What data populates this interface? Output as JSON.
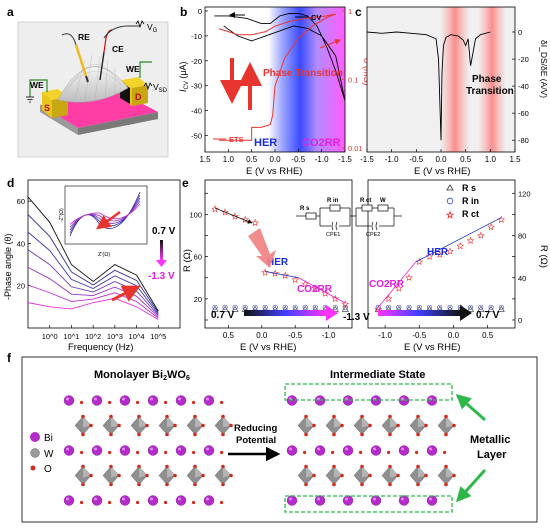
{
  "panels": {
    "a": {
      "letter": "a",
      "labels": {
        "re": "RE",
        "ce": "CE",
        "vg": "V",
        "vg_sub": "G",
        "we_left": "WE",
        "we_right": "WE",
        "vsd": "V",
        "vsd_sub": "SD",
        "s": "S",
        "d": "D"
      },
      "colors": {
        "substrate": "#ff3ea5",
        "electrode": "#e8c51a",
        "flake": "#d9d9d9"
      }
    },
    "b": {
      "letter": "b",
      "xlabel": "E (V vs RHE)",
      "ylabel_left": "I",
      "ylabel_left_sub": "CV",
      "ylabel_left_unit": " (μA)",
      "ylabel_right": "σ (mS)",
      "legend_cv": "CV",
      "legend_ets": "ETS",
      "annotation": "Phase Transition",
      "region_her": "HER",
      "region_co2rr": "CO2RR",
      "colors": {
        "her": "#3a4cff",
        "co2rr": "#ff33ff",
        "ets": "#e8342f"
      }
    },
    "c": {
      "letter": "c",
      "xlabel": "E (V vs RHE)",
      "ylabel_right": "δI_DS/δE (A/V)",
      "annotation_line1": "Phase",
      "annotation_line2": "Transition"
    },
    "d": {
      "letter": "d",
      "xlabel": "Frequency (Hz)",
      "ylabel": "-Phase angle (θ)",
      "label_top": "0.7 V",
      "label_bottom": "-1.3 V",
      "inset_xlabel": "Z'(Ω)",
      "inset_ylabel": "-Z''(Ω)"
    },
    "e": {
      "letter": "e",
      "ylabel": "R (Ω)",
      "xlabel_left": "E (V vs RHE)",
      "xlabel_right": "E (V vs RHE)",
      "legend": [
        {
          "name": "R s"
        },
        {
          "name": "R in"
        },
        {
          "name": "R ct"
        }
      ],
      "circuit": {
        "rs": "R s",
        "rin": "R in",
        "rct": "R ct",
        "w": "W",
        "cpe1": "CPE1",
        "cpe2": "CPE2"
      },
      "region_her_left": "HER",
      "region_co2rr_left": "CO2RR",
      "region_her_right": "HER",
      "region_co2rr_right": "CO2RR",
      "arrow_left_start": "0.7 V",
      "arrow_left_end": "-1.3 V",
      "arrow_right_end": "0.7 V"
    },
    "f": {
      "letter": "f",
      "title_left": "Monolayer Bi2WO6",
      "title_right": "Intermediate State",
      "arrow_label_line1": "Reducing",
      "arrow_label_line2": "Potential",
      "legend": [
        {
          "name": "Bi"
        },
        {
          "name": "W"
        },
        {
          "name": "O"
        }
      ],
      "metallic_line1": "Metallic",
      "metallic_line2": "Layer",
      "colors": {
        "bi": "#b32cc9",
        "w": "#9a9a9a",
        "o": "#d12a1e",
        "arrow": "#2eb84a"
      }
    }
  },
  "chart_data": [
    {
      "panel": "b",
      "type": "line",
      "x_range": [
        1.5,
        -1.5
      ],
      "ylim_right": [
        0.01,
        1
      ],
      "yscale_right": "log",
      "xticks": [
        1.5,
        1.0,
        0.5,
        0.0,
        -0.5,
        -1.0,
        -1.5
      ],
      "xtick_labels": [
        "1.5",
        "1.0",
        "0.5",
        "0.0",
        "-0.5",
        "-1.0",
        "-1.5"
      ],
      "yticks_left": [
        0,
        -10,
        -20,
        -30,
        -40,
        -50
      ],
      "ytick_labels_left": [
        "0",
        "-10",
        "-20",
        "-30",
        "-40",
        "-50"
      ],
      "ytick_labels_right": [
        "0.01",
        "0.1",
        "1"
      ],
      "series": [
        {
          "name": "CV",
          "x": [
            1.3,
            1.0,
            0.6,
            0.3,
            0.1,
            -0.1,
            -0.3,
            -0.5,
            -0.7,
            -0.9,
            -1.1,
            -1.3,
            -1.5,
            -1.3,
            -1.0,
            -0.7,
            -0.4,
            -0.1,
            0.2,
            0.5,
            0.8,
            1.1
          ],
          "y": [
            -2,
            -2,
            -3,
            -5,
            -5,
            -2,
            -1,
            -1,
            -2,
            -6,
            -14,
            -24,
            -36,
            -18,
            -10,
            -7,
            -6,
            -8,
            -10,
            -12,
            -10,
            -6
          ]
        },
        {
          "name": "ETS",
          "x": [
            1.2,
            1.0,
            0.7,
            0.5,
            0.5,
            0.3,
            0.1,
            0.05,
            0.0,
            -0.2,
            -0.5,
            -0.8,
            -1.1,
            -1.3,
            -1.1,
            -0.8,
            -0.5,
            -0.3,
            0.0,
            0.2,
            0.5,
            0.8,
            1.0,
            1.2
          ],
          "y": [
            0.013,
            0.013,
            0.013,
            0.013,
            0.02,
            0.02,
            0.022,
            0.03,
            0.08,
            0.2,
            0.4,
            0.6,
            0.8,
            0.9,
            0.85,
            0.8,
            0.75,
            0.7,
            0.6,
            0.5,
            0.45,
            0.45,
            0.5,
            0.55
          ]
        }
      ]
    },
    {
      "panel": "c",
      "type": "line",
      "x_range": [
        -1.5,
        1.5
      ],
      "xticks": [
        -1.5,
        -1.0,
        -0.5,
        0.0,
        0.5,
        1.0,
        1.5
      ],
      "xtick_labels": [
        "-1.5",
        "-1.0",
        "-0.5",
        "0.0",
        "0.5",
        "1.0",
        "1.5"
      ],
      "yticks": [
        0,
        -20,
        -40,
        -60,
        -80
      ],
      "ytick_labels": [
        "0",
        "-20",
        "-40",
        "-60",
        "-80"
      ],
      "series": [
        {
          "name": "dIds/dE",
          "x": [
            -1.5,
            -1.2,
            -0.9,
            -0.6,
            -0.3,
            -0.1,
            -0.05,
            0.0,
            0.02,
            0.05,
            0.1,
            0.2,
            0.35,
            0.45,
            0.5,
            0.55,
            0.6,
            0.65,
            0.7,
            0.8,
            1.0
          ],
          "y": [
            0,
            -1,
            0,
            -1,
            -2,
            -5,
            -20,
            -80,
            -30,
            -10,
            -4,
            -2,
            -3,
            -6,
            -10,
            -5,
            -25,
            -15,
            -5,
            -2,
            0
          ]
        }
      ]
    },
    {
      "panel": "d",
      "type": "line",
      "xscale": "log",
      "x_range": [
        0.1,
        1000000
      ],
      "xtick_labels": [
        "10^0",
        "10^1",
        "10^2",
        "10^3",
        "10^4",
        "10^5"
      ],
      "ytick_labels": [
        "20",
        "40",
        "60"
      ],
      "series": [
        {
          "name": "0.7 V",
          "x": [
            0.1,
            1,
            10,
            100,
            1000,
            10000,
            100000
          ],
          "y": [
            62,
            50,
            30,
            22,
            30,
            25,
            8
          ]
        },
        {
          "name": "-1.3 V",
          "x": [
            0.1,
            1,
            10,
            100,
            1000,
            10000,
            100000
          ],
          "y": [
            12,
            10,
            9,
            12,
            14,
            10,
            4
          ]
        }
      ]
    },
    {
      "panel": "e",
      "type": "scatter",
      "ytick_labels": [
        "0",
        "20",
        "40",
        "60",
        "80",
        "100",
        "120"
      ],
      "xtick_labels_left": [
        "0.5",
        "0.0",
        "-0.5",
        "-1.0"
      ],
      "xtick_labels_right": [
        "-1.0",
        "-0.5",
        "0.0",
        "0.5"
      ],
      "series": [
        {
          "name": "R s",
          "x_left": [
            0.7,
            0.55,
            0.4,
            0.25,
            0.1,
            -0.05,
            -0.2,
            -0.35,
            -0.5,
            -0.65,
            -0.8,
            -0.95,
            -1.1,
            -1.25
          ],
          "y_left": [
            10,
            10,
            10,
            10,
            10,
            10,
            10,
            10,
            10,
            10,
            10,
            10,
            10,
            10
          ],
          "x_right": [
            -1.1,
            -0.95,
            -0.8,
            -0.65,
            -0.5,
            -0.35,
            -0.2,
            -0.05,
            0.1,
            0.25,
            0.4,
            0.55,
            0.7
          ],
          "y_right": [
            10,
            10,
            10,
            10,
            10,
            10,
            10,
            10,
            10,
            10,
            10,
            10,
            10
          ]
        },
        {
          "name": "R in",
          "x_left": [
            0.7,
            0.55,
            0.4,
            0.25,
            0.1,
            -0.05,
            -0.2,
            -0.35,
            -0.5,
            -0.65,
            -0.8,
            -0.95,
            -1.1,
            -1.25
          ],
          "y_left": [
            12,
            12,
            12,
            12,
            12,
            12,
            12,
            12,
            12,
            12,
            12,
            12,
            12,
            12
          ],
          "x_right": [
            -1.1,
            -0.95,
            -0.8,
            -0.65,
            -0.5,
            -0.35,
            -0.2,
            -0.05,
            0.1,
            0.25,
            0.4,
            0.55,
            0.7
          ],
          "y_right": [
            12,
            12,
            12,
            12,
            12,
            12,
            12,
            12,
            12,
            12,
            12,
            12,
            12
          ]
        },
        {
          "name": "R ct",
          "x_left": [
            0.7,
            0.55,
            0.4,
            0.25,
            0.1,
            -0.05,
            -0.2,
            -0.35,
            -0.5,
            -0.65,
            -0.8,
            -0.95,
            -1.1,
            -1.25
          ],
          "y_left": [
            105,
            102,
            98,
            95,
            92,
            45,
            44,
            42,
            38,
            34,
            30,
            25,
            20,
            15
          ],
          "x_right": [
            -1.1,
            -0.95,
            -0.8,
            -0.65,
            -0.5,
            -0.35,
            -0.2,
            -0.05,
            0.1,
            0.25,
            0.4,
            0.55,
            0.7
          ],
          "y_right": [
            10,
            20,
            30,
            40,
            55,
            60,
            62,
            65,
            70,
            75,
            80,
            88,
            95
          ]
        }
      ]
    }
  ]
}
